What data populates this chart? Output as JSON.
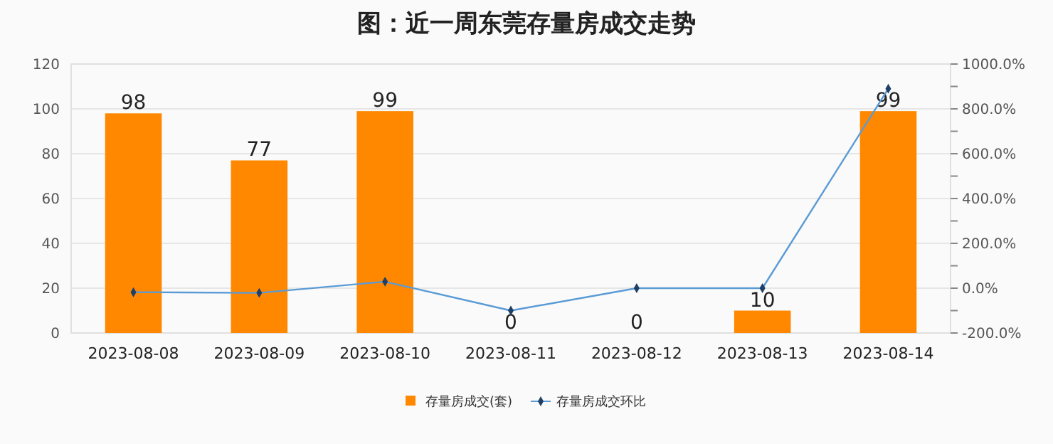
{
  "chart_data": {
    "type": "bar",
    "title": "图：近一周东莞存量房成交走势",
    "categories": [
      "2023-08-08",
      "2023-08-09",
      "2023-08-10",
      "2023-08-11",
      "2023-08-12",
      "2023-08-13",
      "2023-08-14"
    ],
    "series": [
      {
        "name": "存量房成交(套)",
        "color": "#ff8800",
        "values": [
          98,
          77,
          99,
          0,
          0,
          10,
          99
        ],
        "value_labels": [
          "98",
          "77",
          "99",
          "0",
          "0",
          "10",
          "99"
        ]
      },
      {
        "name": "存量房成交环比",
        "type": "line",
        "axis": "y2",
        "color": "#5b9bd5",
        "values": [
          -18,
          -21,
          29,
          -100,
          0,
          0,
          890
        ]
      }
    ],
    "ylim": [
      0,
      120
    ],
    "yticks": [
      0,
      20,
      40,
      60,
      80,
      100,
      120
    ],
    "y2lim": [
      -200,
      1000
    ],
    "y2ticks": [
      {
        "value": -200,
        "label": "-200.0%"
      },
      {
        "value": -100,
        "label": null
      },
      {
        "value": 0,
        "label": "0.0%"
      },
      {
        "value": 100,
        "label": null
      },
      {
        "value": 200,
        "label": "200.0%"
      },
      {
        "value": 300,
        "label": null
      },
      {
        "value": 400,
        "label": "400.0%"
      },
      {
        "value": 500,
        "label": null
      },
      {
        "value": 600,
        "label": "600.0%"
      },
      {
        "value": 700,
        "label": null
      },
      {
        "value": 800,
        "label": "800.0%"
      },
      {
        "value": 900,
        "label": null
      },
      {
        "value": 1000,
        "label": "1000.0%"
      }
    ],
    "grid": "y",
    "legend": "bottom",
    "marker": "diamond",
    "line_style": "solid"
  }
}
